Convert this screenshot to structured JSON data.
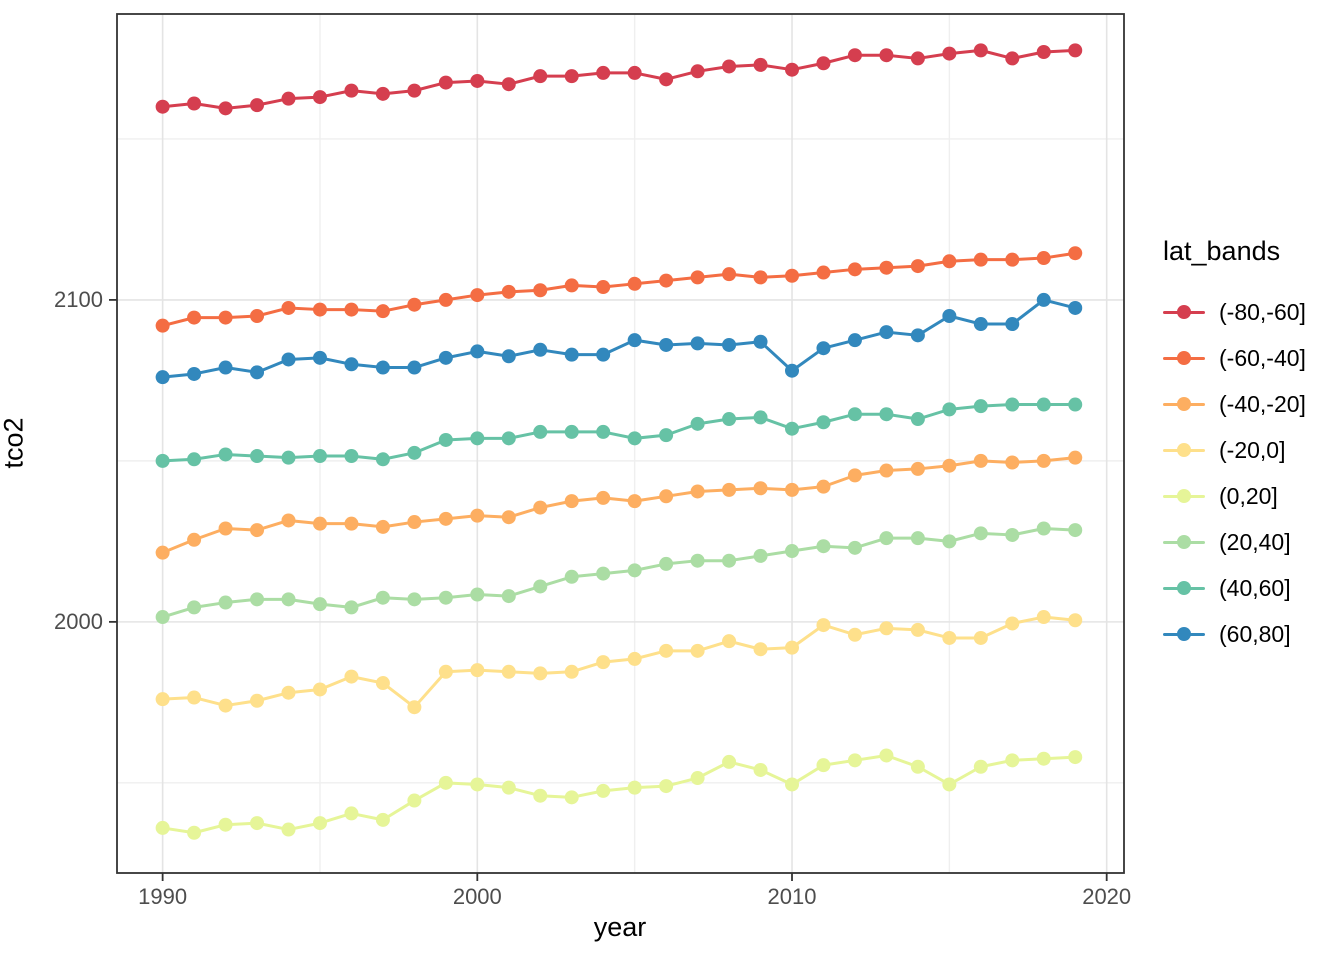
{
  "axes": {
    "x_label": "year",
    "y_label": "tco2"
  },
  "legend": {
    "title": "lat_bands",
    "position": "right"
  },
  "chart_data": {
    "type": "line",
    "title": "",
    "xlabel": "year",
    "ylabel": "tco2",
    "grid": true,
    "legend_title": "lat_bands",
    "legend_position": "right",
    "xlim": [
      1988.55,
      2020.55
    ],
    "ylim": [
      1922,
      2188.8
    ],
    "x_ticks_major": [
      1990,
      2000,
      2010,
      2020
    ],
    "x_tick_labels": [
      "1990",
      "2000",
      "2010",
      "2020"
    ],
    "x_ticks_minor": [
      1995,
      2005,
      2015
    ],
    "y_ticks_major": [
      2000,
      2100
    ],
    "y_tick_labels": [
      "2000",
      "2100"
    ],
    "y_ticks_minor": [
      1950,
      2050,
      2150
    ],
    "x": [
      1990,
      1991,
      1992,
      1993,
      1994,
      1995,
      1996,
      1997,
      1998,
      1999,
      2000,
      2001,
      2002,
      2003,
      2004,
      2005,
      2006,
      2007,
      2008,
      2009,
      2010,
      2011,
      2012,
      2013,
      2014,
      2015,
      2016,
      2017,
      2018,
      2019
    ],
    "series": [
      {
        "name": "(-80,-60]",
        "color": "#d53e4f",
        "values": [
          2160,
          2161,
          2159.5,
          2160.5,
          2162.5,
          2163,
          2165,
          2164,
          2165,
          2167.5,
          2168,
          2167,
          2169.5,
          2169.5,
          2170.5,
          2170.5,
          2168.5,
          2171,
          2172.5,
          2173,
          2171.5,
          2173.5,
          2176,
          2176,
          2175,
          2176.5,
          2177.5,
          2175,
          2177,
          2177.5
        ]
      },
      {
        "name": "(-60,-40]",
        "color": "#f46d43",
        "values": [
          2092,
          2094.5,
          2094.5,
          2095,
          2097.5,
          2097,
          2097,
          2096.5,
          2098.5,
          2100,
          2101.5,
          2102.5,
          2103,
          2104.5,
          2104,
          2105,
          2106,
          2107,
          2108,
          2107,
          2107.5,
          2108.5,
          2109.5,
          2110,
          2110.5,
          2112,
          2112.5,
          2112.5,
          2113,
          2114.5
        ]
      },
      {
        "name": "(-40,-20]",
        "color": "#fdae61",
        "values": [
          2021.5,
          2025.5,
          2029,
          2028.5,
          2031.5,
          2030.5,
          2030.5,
          2029.5,
          2031,
          2032,
          2033,
          2032.5,
          2035.5,
          2037.5,
          2038.5,
          2037.5,
          2039,
          2040.5,
          2041,
          2041.5,
          2041,
          2042,
          2045.5,
          2047,
          2047.5,
          2048.5,
          2050,
          2049.5,
          2050,
          2051
        ]
      },
      {
        "name": "(-20,0]",
        "color": "#fee08b",
        "values": [
          1976,
          1976.5,
          1974,
          1975.5,
          1978,
          1979,
          1983,
          1981,
          1973.5,
          1984.5,
          1985,
          1984.5,
          1984,
          1984.5,
          1987.5,
          1988.5,
          1991,
          1991,
          1994,
          1991.5,
          1992,
          1999,
          1996,
          1998,
          1997.5,
          1995,
          1995,
          1999.5,
          2001.5,
          2000.5
        ]
      },
      {
        "name": "(0,20]",
        "color": "#e6f598",
        "values": [
          1936,
          1934.5,
          1937,
          1937.5,
          1935.5,
          1937.5,
          1940.5,
          1938.5,
          1944.5,
          1950,
          1949.5,
          1948.5,
          1946,
          1945.5,
          1947.5,
          1948.5,
          1949,
          1951.5,
          1956.5,
          1954,
          1949.5,
          1955.5,
          1957,
          1958.5,
          1955,
          1949.5,
          1955,
          1957,
          1957.5,
          1958
        ]
      },
      {
        "name": "(20,40]",
        "color": "#abdda4",
        "values": [
          2001.5,
          2004.5,
          2006,
          2007,
          2007,
          2005.5,
          2004.5,
          2007.5,
          2007,
          2007.5,
          2008.5,
          2008,
          2011,
          2014,
          2015,
          2016,
          2018,
          2019,
          2019,
          2020.5,
          2022,
          2023.5,
          2023,
          2026,
          2026,
          2025,
          2027.5,
          2027,
          2029,
          2028.5
        ]
      },
      {
        "name": "(40,60]",
        "color": "#66c2a5",
        "values": [
          2050,
          2050.5,
          2052,
          2051.5,
          2051,
          2051.5,
          2051.5,
          2050.5,
          2052.5,
          2056.5,
          2057,
          2057,
          2059,
          2059,
          2059,
          2057,
          2058,
          2061.5,
          2063,
          2063.5,
          2060,
          2062,
          2064.5,
          2064.5,
          2063,
          2066,
          2067,
          2067.5,
          2067.5,
          2067.5
        ]
      },
      {
        "name": "(60,80]",
        "color": "#3288bd",
        "values": [
          2076,
          2077,
          2079,
          2077.5,
          2081.5,
          2082,
          2080,
          2079,
          2079,
          2082,
          2084,
          2082.5,
          2084.5,
          2083,
          2083,
          2087.5,
          2086,
          2086.5,
          2086,
          2087,
          2078,
          2085,
          2087.5,
          2090,
          2089,
          2095,
          2092.5,
          2092.5,
          2100,
          2097.5
        ]
      }
    ],
    "style": {
      "panel_border": "#333333",
      "grid_major": "#e4e4e4",
      "grid_minor": "#efefef",
      "tick_color": "#333333",
      "tick_label_color": "#4d4d4d"
    }
  }
}
